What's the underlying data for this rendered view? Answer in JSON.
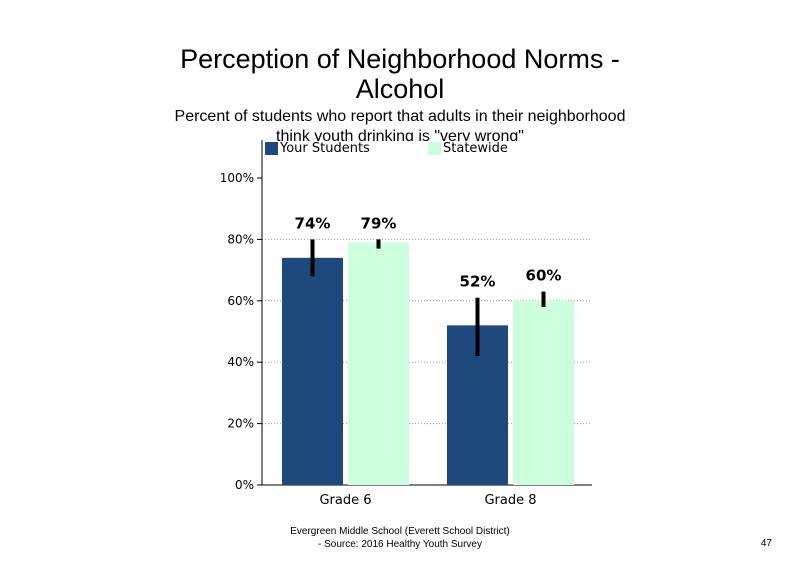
{
  "chart_data": {
    "type": "bar",
    "title_lines": [
      "Perception of Neighborhood Norms -",
      "Alcohol"
    ],
    "subtitle_lines": [
      "Percent of students who report that adults in their neighborhood",
      "think youth drinking is \"very wrong\""
    ],
    "categories": [
      "Grade 6",
      "Grade 8"
    ],
    "series": [
      {
        "name": "Your Students",
        "color": "#1f497d",
        "values": [
          74,
          52
        ],
        "error_low": [
          68,
          42
        ],
        "error_high": [
          80,
          61
        ],
        "labels": [
          "74%",
          "52%"
        ]
      },
      {
        "name": "Statewide",
        "color": "#ccffdd",
        "values": [
          79,
          60
        ],
        "error_low": [
          77,
          58
        ],
        "error_high": [
          80,
          63
        ],
        "labels": [
          "79%",
          "60%"
        ]
      }
    ],
    "yticks": [
      "0%",
      "20%",
      "40%",
      "60%",
      "80%",
      "100%"
    ],
    "ytick_values": [
      0,
      20,
      40,
      60,
      80,
      100
    ],
    "ylim": [
      0,
      100
    ],
    "gridlines": "dotted",
    "legend_position": "top"
  },
  "footer": {
    "line1": "Evergreen Middle School (Everett School District)",
    "line2": "- Source: 2016 Healthy  Youth Survey"
  },
  "page_number": "47"
}
